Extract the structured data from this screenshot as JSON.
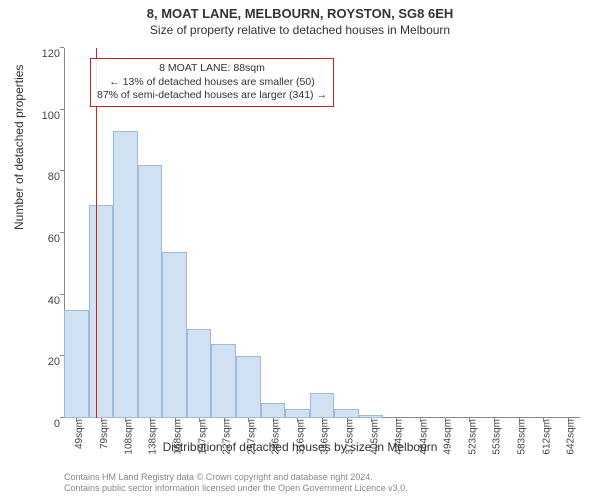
{
  "title_line1": "8, MOAT LANE, MELBOURN, ROYSTON, SG8 6EH",
  "title_line2": "Size of property relative to detached houses in Melbourn",
  "ylabel": "Number of detached properties",
  "xlabel": "Distribution of detached houses by size in Melbourn",
  "chart": {
    "type": "histogram",
    "background_color": "#ffffff",
    "bar_fill": "#cfe1f2",
    "bar_border": "#9fb9d6",
    "axis_color": "#888888",
    "ylim": [
      0,
      120
    ],
    "ytick_step": 20,
    "yticks": [
      0,
      20,
      40,
      60,
      80,
      100,
      120
    ],
    "categories": [
      "49sqm",
      "79sqm",
      "108sqm",
      "138sqm",
      "168sqm",
      "197sqm",
      "227sqm",
      "257sqm",
      "286sqm",
      "316sqm",
      "346sqm",
      "375sqm",
      "405sqm",
      "434sqm",
      "464sqm",
      "494sqm",
      "523sqm",
      "553sqm",
      "583sqm",
      "612sqm",
      "642sqm"
    ],
    "values": [
      35,
      69,
      93,
      82,
      54,
      29,
      24,
      20,
      5,
      3,
      8,
      3,
      1,
      0,
      0,
      0,
      0,
      0,
      0,
      0,
      0
    ],
    "bar_width": 1.0,
    "tick_fontsize": 10,
    "label_fontsize": 12,
    "title_fontsize": 13
  },
  "marker": {
    "color": "#d02020",
    "x_index": 1.3,
    "annot_lines": [
      "8 MOAT LANE: 88sqm",
      "← 13% of detached houses are smaller (50)",
      "87% of semi-detached houses are larger (341) →"
    ]
  },
  "credits": {
    "line1": "Contains HM Land Registry data © Crown copyright and database right 2024.",
    "line2": "Contains public sector information licensed under the Open Government Licence v3.0."
  }
}
